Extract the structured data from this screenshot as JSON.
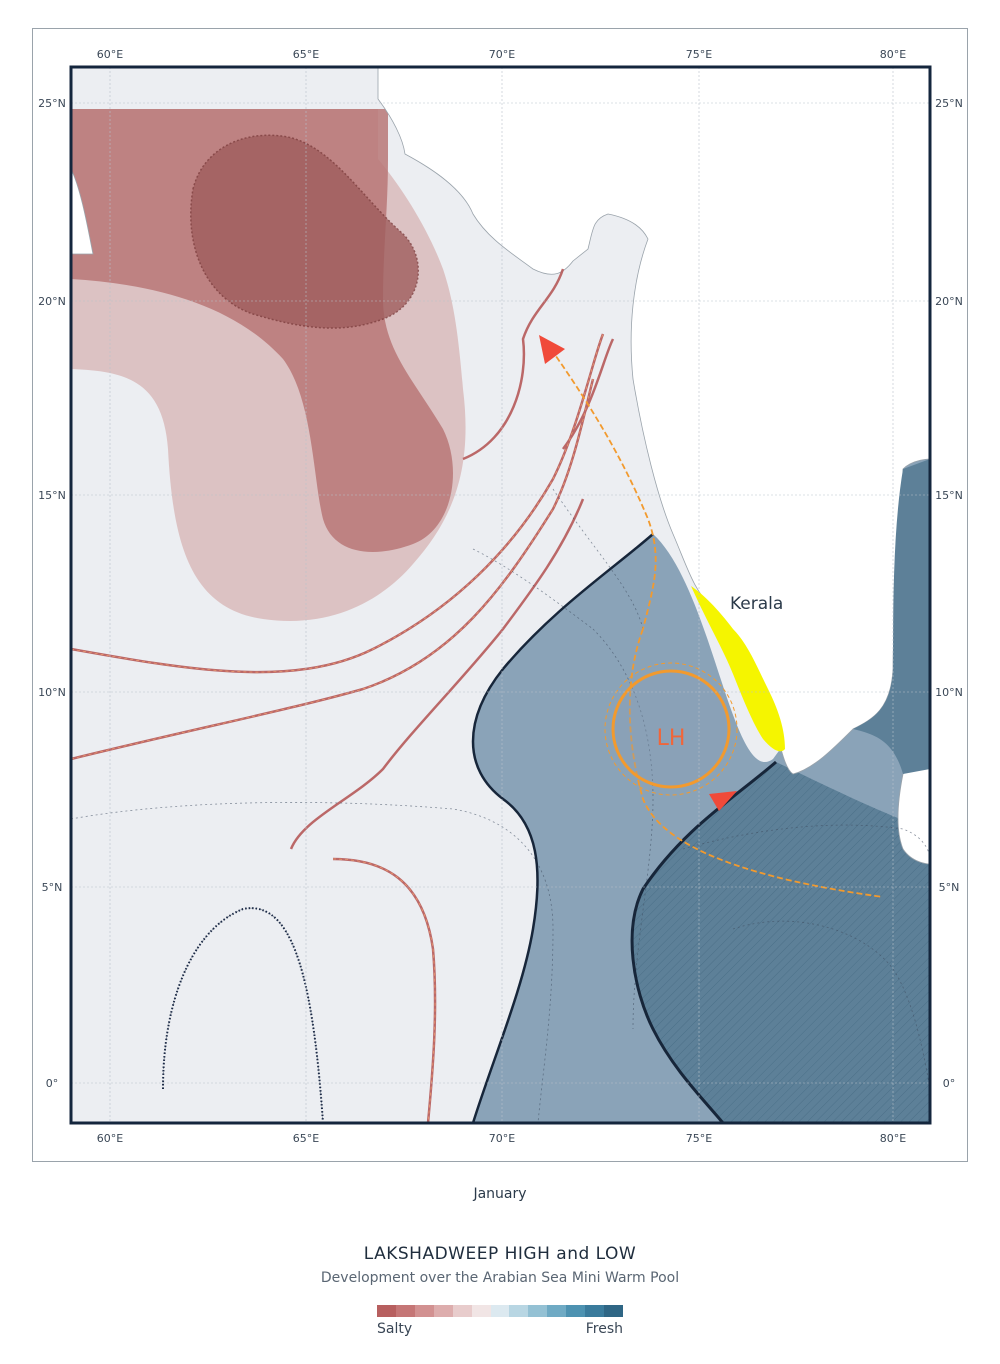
{
  "map": {
    "lon_labels": [
      "60°E",
      "65°E",
      "70°E",
      "75°E",
      "80°E"
    ],
    "lat_labels": [
      "25°N",
      "20°N",
      "15°N",
      "10°N",
      "5°N",
      "0°"
    ],
    "region_label": "Kerala",
    "center_label": "LH",
    "colors": {
      "salty": "#b86b6b",
      "fresh": "#3f6f8f",
      "kerala": "#f5f500",
      "track": "#f29a2e",
      "arrow": "#f04a3a"
    }
  },
  "month": "January",
  "title": "LAKSHADWEEP HIGH and LOW",
  "subtitle": "Development over the Arabian Sea Mini Warm Pool",
  "legend": {
    "low_label": "Salty",
    "high_label": "Fresh",
    "stops": [
      "#b75f5f",
      "#c57676",
      "#d29191",
      "#ddadad",
      "#e8cccc",
      "#f1e5e5",
      "#dce9f0",
      "#b8d6e3",
      "#94c1d4",
      "#6faac4",
      "#4d92b1",
      "#3a7b9c",
      "#2f6685"
    ]
  }
}
